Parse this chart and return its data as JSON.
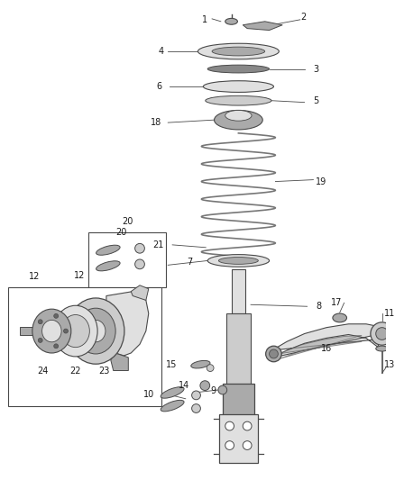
{
  "background_color": "#ffffff",
  "line_color": "#4a4a4a",
  "text_color": "#1a1a1a",
  "figsize": [
    4.38,
    5.33
  ],
  "dpi": 100,
  "label_fs": 7.0,
  "spring_color": "#888888",
  "part_fill": "#cccccc",
  "part_fill2": "#aaaaaa",
  "part_fill3": "#e0e0e0"
}
